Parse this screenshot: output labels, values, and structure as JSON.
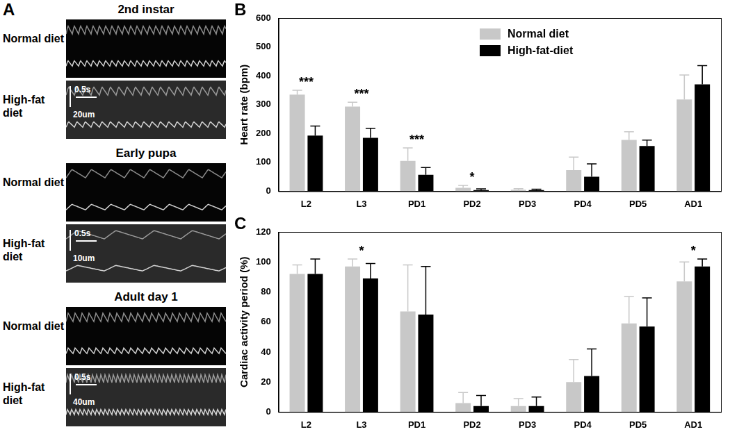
{
  "panel_a": {
    "label": "A",
    "groups": [
      {
        "title": "2nd instar",
        "rows": [
          "Normal diet",
          "High-fat diet"
        ],
        "scale_bar": {
          "length": "20um",
          "time": "0.5s"
        }
      },
      {
        "title": "Early pupa",
        "rows": [
          "Normal diet",
          "High-fat diet"
        ],
        "scale_bar": {
          "length": "10um",
          "time": "0.5s"
        }
      },
      {
        "title": "Adult day 1",
        "rows": [
          "Normal diet",
          "High-fat diet"
        ],
        "scale_bar": {
          "length": "40um",
          "time": "0.5s"
        }
      }
    ]
  },
  "chart_data": [
    {
      "type": "bar",
      "title": "B",
      "categories": [
        "L2",
        "L3",
        "PD1",
        "PD2",
        "PD3",
        "PD4",
        "PD5",
        "AD1"
      ],
      "y_label": "Heart rate (bpm)",
      "ylim": [
        0,
        600
      ],
      "yticks": [
        0,
        100,
        200,
        300,
        400,
        500,
        600
      ],
      "grid": false,
      "legend": "top",
      "series": [
        {
          "name": "Normal diet",
          "color": "#c8c8c8",
          "values": [
            335,
            293,
            105,
            12,
            5,
            73,
            178,
            318
          ],
          "errors": [
            15,
            15,
            45,
            8,
            4,
            45,
            28,
            85
          ]
        },
        {
          "name": "High-fat-diet",
          "color": "#000000",
          "values": [
            193,
            185,
            57,
            4,
            4,
            50,
            157,
            370
          ],
          "errors": [
            33,
            33,
            25,
            4,
            3,
            45,
            20,
            65
          ]
        }
      ],
      "annotations": [
        {
          "category": "L2",
          "text": "***"
        },
        {
          "category": "L3",
          "text": "***"
        },
        {
          "category": "PD1",
          "text": "***"
        },
        {
          "category": "PD2",
          "text": "*"
        }
      ]
    },
    {
      "type": "bar",
      "title": "C",
      "categories": [
        "L2",
        "L3",
        "PD1",
        "PD2",
        "PD3",
        "PD4",
        "PD5",
        "AD1"
      ],
      "y_label": "Cardiac activity period (%)",
      "ylim": [
        0,
        120
      ],
      "yticks": [
        0,
        20,
        40,
        60,
        80,
        100,
        120
      ],
      "grid": false,
      "series": [
        {
          "name": "Normal diet",
          "color": "#c8c8c8",
          "values": [
            92,
            97,
            67,
            6,
            4,
            20,
            59,
            87
          ],
          "errors": [
            6,
            5,
            31,
            7,
            5,
            15,
            18,
            13
          ]
        },
        {
          "name": "High-fat-diet",
          "color": "#000000",
          "values": [
            92,
            89,
            65,
            4,
            4,
            24,
            57,
            97
          ],
          "errors": [
            10,
            10,
            32,
            7,
            6,
            18,
            19,
            5
          ]
        }
      ],
      "annotations": [
        {
          "category": "L3",
          "text": "*"
        },
        {
          "category": "AD1",
          "text": "*"
        }
      ]
    }
  ]
}
